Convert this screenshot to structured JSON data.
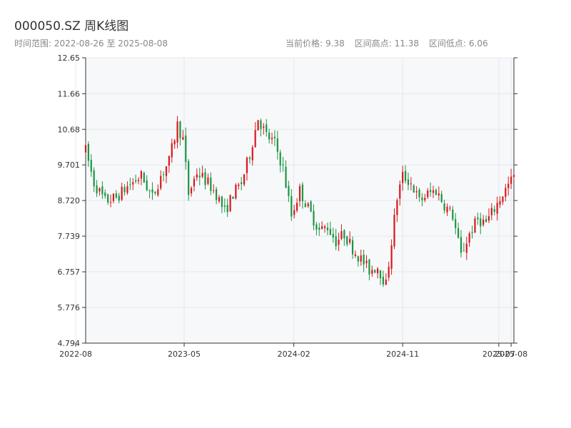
{
  "header": {
    "title": "000050.SZ 周K线图",
    "range_label": "时间范围:",
    "start_date": "2022-08-26",
    "range_sep": "至",
    "end_date": "2025-08-08",
    "price_label": "当前价格:",
    "price": "9.38",
    "high_label": "区间高点:",
    "high": "11.38",
    "low_label": "区间低点:",
    "low": "6.06"
  },
  "colors": {
    "up": "#d7191c",
    "down": "#1a9641",
    "plot_bg": "#f7f8fa",
    "grid": "#e4e7ec",
    "axis": "#333333"
  },
  "chart_data": {
    "type": "candlestick",
    "title": "000050.SZ 周K线图",
    "xlabel": "",
    "ylabel": "",
    "x_range": [
      "2022-08-26",
      "2025-08-08"
    ],
    "ylim": [
      4.794,
      12.65
    ],
    "yticks": [
      4.794,
      5.776,
      6.757,
      7.739,
      8.72,
      9.701,
      10.68,
      11.66,
      12.65
    ],
    "ytick_labels": [
      "4.794",
      "5.776",
      "6.757",
      "7.739",
      "8.720",
      "9.701",
      "10.68",
      "11.66",
      "12.65"
    ],
    "xticks": [
      "2022-08-01",
      "2023-05-01",
      "2024-02-01",
      "2024-11-01",
      "2025-07-01",
      "2025-08-01"
    ],
    "xtick_labels": [
      "2022-08",
      "2023-05",
      "2024-02",
      "2024-11",
      "2025-07",
      "2025-08"
    ],
    "grid": true,
    "anchors": [
      [
        "2022-08-26",
        10.1
      ],
      [
        "2022-09-16",
        9.2
      ],
      [
        "2022-10-14",
        8.7
      ],
      [
        "2022-11-11",
        8.8
      ],
      [
        "2022-12-09",
        9.1
      ],
      [
        "2023-01-13",
        9.4
      ],
      [
        "2023-02-10",
        8.8
      ],
      [
        "2023-03-03",
        9.4
      ],
      [
        "2023-03-24",
        9.8
      ],
      [
        "2023-04-14",
        10.8
      ],
      [
        "2023-04-28",
        10.4
      ],
      [
        "2023-05-12",
        8.9
      ],
      [
        "2023-06-02",
        9.5
      ],
      [
        "2023-06-30",
        9.2
      ],
      [
        "2023-07-21",
        8.9
      ],
      [
        "2023-08-11",
        8.4
      ],
      [
        "2023-09-01",
        8.9
      ],
      [
        "2023-09-22",
        9.2
      ],
      [
        "2023-10-13",
        10.0
      ],
      [
        "2023-11-03",
        11.0
      ],
      [
        "2023-11-24",
        10.5
      ],
      [
        "2023-12-15",
        10.3
      ],
      [
        "2024-01-05",
        9.6
      ],
      [
        "2024-01-26",
        8.3
      ],
      [
        "2024-02-16",
        9.0
      ],
      [
        "2024-03-08",
        8.5
      ],
      [
        "2024-04-05",
        7.9
      ],
      [
        "2024-04-26",
        8.0
      ],
      [
        "2024-05-17",
        7.6
      ],
      [
        "2024-06-07",
        7.8
      ],
      [
        "2024-06-28",
        7.4
      ],
      [
        "2024-07-19",
        7.1
      ],
      [
        "2024-08-09",
        6.8
      ],
      [
        "2024-08-30",
        6.9
      ],
      [
        "2024-09-20",
        6.4
      ],
      [
        "2024-10-04",
        7.6
      ],
      [
        "2024-10-18",
        8.8
      ],
      [
        "2024-11-01",
        9.4
      ],
      [
        "2024-11-22",
        9.2
      ],
      [
        "2024-12-13",
        8.7
      ],
      [
        "2025-01-03",
        8.9
      ],
      [
        "2025-01-24",
        9.0
      ],
      [
        "2025-02-14",
        8.6
      ],
      [
        "2025-03-07",
        8.3
      ],
      [
        "2025-03-28",
        7.2
      ],
      [
        "2025-04-18",
        7.8
      ],
      [
        "2025-05-09",
        8.2
      ],
      [
        "2025-05-30",
        8.1
      ],
      [
        "2025-06-20",
        8.5
      ],
      [
        "2025-07-11",
        8.9
      ],
      [
        "2025-08-08",
        9.38
      ]
    ]
  }
}
